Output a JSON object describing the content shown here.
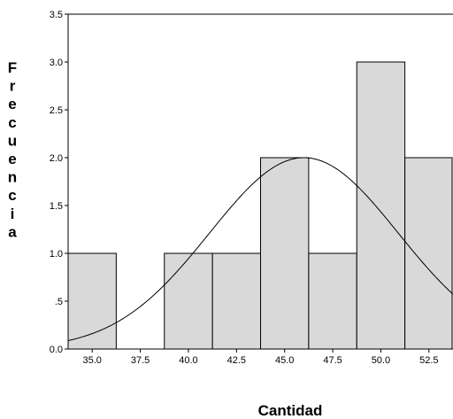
{
  "chart_data": {
    "type": "bar",
    "subtype": "histogram-with-normal-curve",
    "xlabel": "Cantidad",
    "ylabel": "Frecuencia",
    "x_ticks": [
      35.0,
      37.5,
      40.0,
      42.5,
      45.0,
      47.5,
      50.0,
      52.5
    ],
    "x_tick_labels": [
      "35.0",
      "37.5",
      "40.0",
      "42.5",
      "45.0",
      "47.5",
      "50.0",
      "52.5"
    ],
    "y_ticks": [
      0.0,
      0.5,
      1.0,
      1.5,
      2.0,
      2.5,
      3.0,
      3.5
    ],
    "y_tick_labels": [
      "0.0",
      ".5",
      "1.0",
      "1.5",
      "2.0",
      "2.5",
      "3.0",
      "3.5"
    ],
    "xlim": [
      33.75,
      53.75
    ],
    "ylim": [
      0,
      3.5
    ],
    "bin_width": 2.5,
    "bins": [
      {
        "center": 35.0,
        "value": 1
      },
      {
        "center": 37.5,
        "value": 0
      },
      {
        "center": 40.0,
        "value": 1
      },
      {
        "center": 42.5,
        "value": 1
      },
      {
        "center": 45.0,
        "value": 2
      },
      {
        "center": 47.5,
        "value": 1
      },
      {
        "center": 50.0,
        "value": 3
      },
      {
        "center": 52.5,
        "value": 2
      }
    ],
    "normal_curve": {
      "mean": 46.0,
      "sd": 4.9,
      "peak": 2.0
    },
    "grid": false,
    "colors": {
      "bar_fill": "#d9d9d9",
      "stroke": "#000000"
    }
  }
}
